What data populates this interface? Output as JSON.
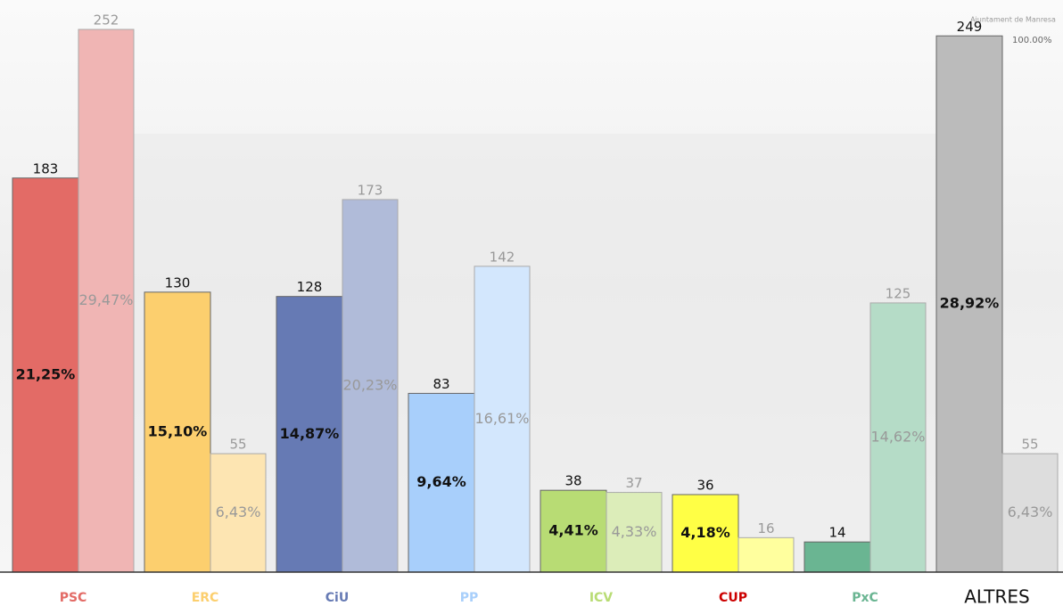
{
  "chart_data": {
    "type": "bar",
    "header": {
      "organization": "Ajuntament de Manresa",
      "scrutiny": "100.00%"
    },
    "categories": [
      "PSC",
      "ERC",
      "CiU",
      "PP",
      "ICV",
      "CUP",
      "PxC",
      "ALTRES"
    ],
    "series": [
      {
        "colors": [
          "#e36b66",
          "#fccf6e",
          "#667ab4",
          "#a8cffb",
          "#b8dc74",
          "#ffff45",
          "#6ab592",
          "#bbbbbb"
        ],
        "values": [
          183,
          130,
          128,
          83,
          38,
          36,
          14,
          249
        ],
        "percent_labels": [
          "21,25%",
          "15,10%",
          "14,87%",
          "9,64%",
          "4,41%",
          "4,18%",
          null,
          "28,92%"
        ]
      },
      {
        "colors": [
          "#f0b5b4",
          "#fde5b2",
          "#b0bbd9",
          "#d3e7fd",
          "#dcedb9",
          "#ffff9e",
          "#b5dcc7",
          "#dddddd"
        ],
        "values": [
          252,
          55,
          173,
          142,
          37,
          16,
          125,
          55
        ],
        "percent_labels": [
          "29,47%",
          "6,43%",
          "20,23%",
          "16,61%",
          "4,33%",
          null,
          "14,62%",
          "6,43%"
        ]
      }
    ]
  }
}
